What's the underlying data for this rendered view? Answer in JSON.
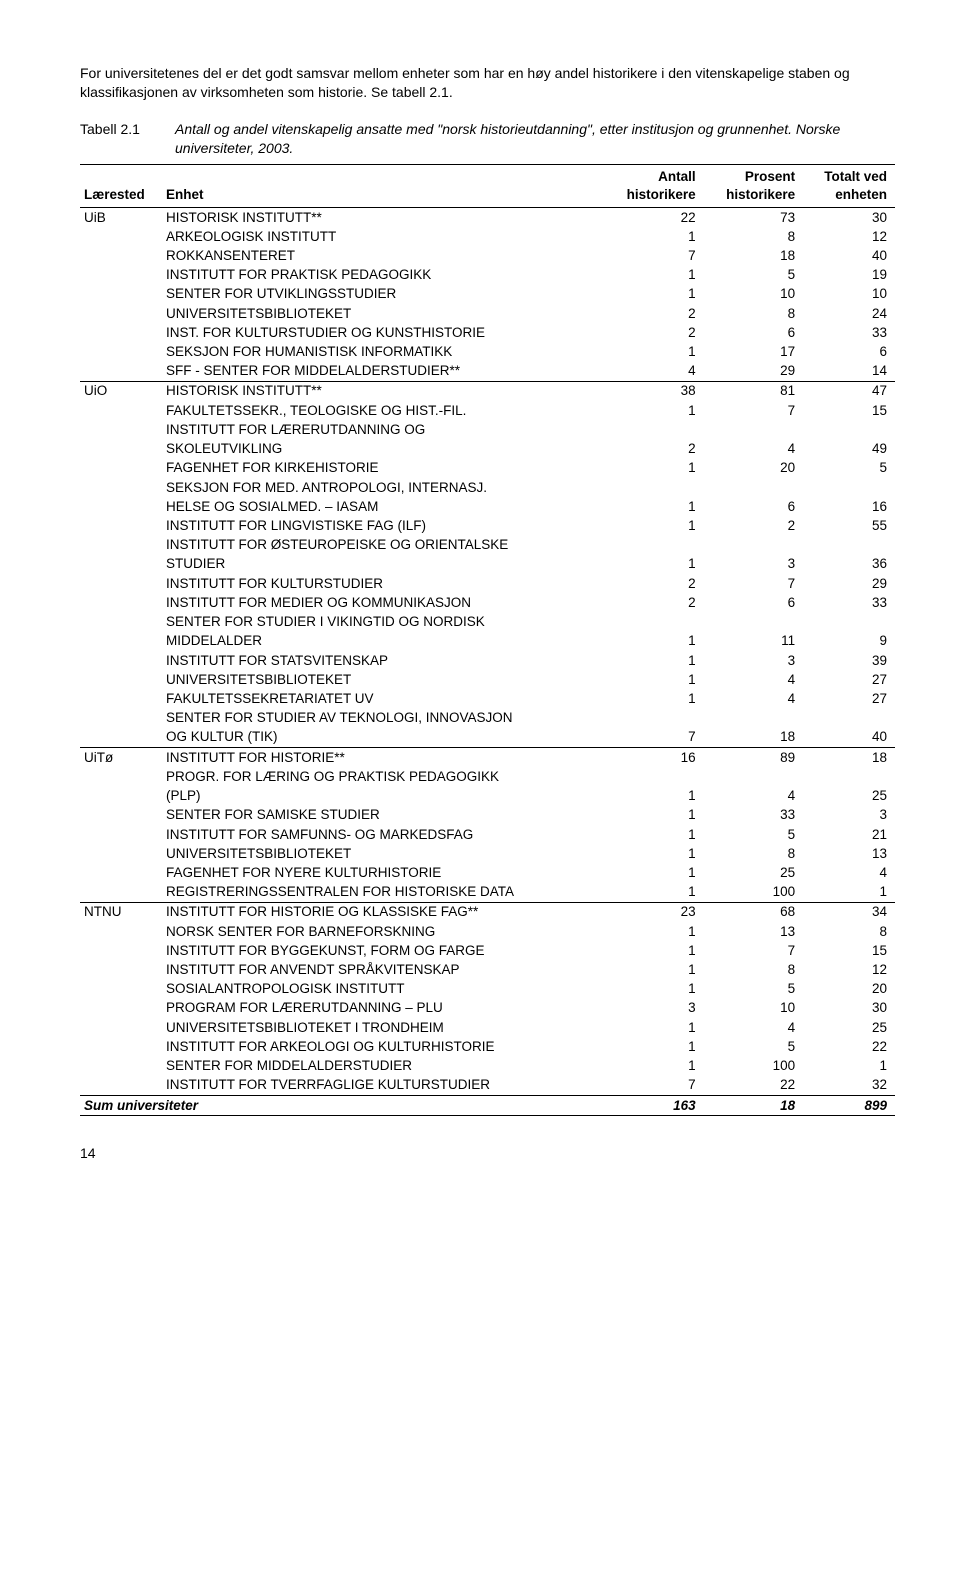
{
  "intro": "For universitetenes del er det godt samsvar mellom enheter som har en høy andel historikere i den vitenskapelige staben og klassifikasjonen av virksomheten som historie. Se tabell 2.1.",
  "table_label": "Tabell 2.1",
  "table_caption": "Antall og andel vitenskapelig ansatte med \"norsk historieutdanning\", etter institusjon og grunnenhet. Norske universiteter, 2003.",
  "headers": {
    "laerested": "Lærested",
    "enhet": "Enhet",
    "antall_l1": "Antall",
    "antall_l2": "historikere",
    "prosent_l1": "Prosent",
    "prosent_l2": "historikere",
    "totalt_l1": "Totalt ved",
    "totalt_l2": "enheten"
  },
  "groups": [
    {
      "lsted": "UiB",
      "rows": [
        {
          "enhet": "HISTORISK INSTITUTT**",
          "a": 22,
          "p": 73,
          "t": 30
        },
        {
          "enhet": "ARKEOLOGISK INSTITUTT",
          "a": 1,
          "p": 8,
          "t": 12
        },
        {
          "enhet": "ROKKANSENTERET",
          "a": 7,
          "p": 18,
          "t": 40
        },
        {
          "enhet": "INSTITUTT FOR PRAKTISK PEDAGOGIKK",
          "a": 1,
          "p": 5,
          "t": 19
        },
        {
          "enhet": "SENTER FOR UTVIKLINGSSTUDIER",
          "a": 1,
          "p": 10,
          "t": 10
        },
        {
          "enhet": "UNIVERSITETSBIBLIOTEKET",
          "a": 2,
          "p": 8,
          "t": 24
        },
        {
          "enhet": "INST. FOR KULTURSTUDIER OG KUNSTHISTORIE",
          "a": 2,
          "p": 6,
          "t": 33
        },
        {
          "enhet": "SEKSJON FOR HUMANISTISK INFORMATIKK",
          "a": 1,
          "p": 17,
          "t": 6
        },
        {
          "enhet": "SFF - SENTER FOR MIDDELALDERSTUDIER**",
          "a": 4,
          "p": 29,
          "t": 14
        }
      ]
    },
    {
      "lsted": "UiO",
      "rows": [
        {
          "enhet": "HISTORISK INSTITUTT**",
          "a": 38,
          "p": 81,
          "t": 47
        },
        {
          "enhet": "FAKULTETSSEKR., TEOLOGISKE OG HIST.-FIL.",
          "a": 1,
          "p": 7,
          "t": 15
        },
        {
          "enhet": "INSTITUTT FOR LÆRERUTDANNING OG",
          "enhet2": "SKOLEUTVIKLING",
          "a": 2,
          "p": 4,
          "t": 49
        },
        {
          "enhet": "FAGENHET FOR KIRKEHISTORIE",
          "a": 1,
          "p": 20,
          "t": 5
        },
        {
          "enhet": "SEKSJON FOR MED. ANTROPOLOGI, INTERNASJ.",
          "enhet2": "HELSE OG SOSIALMED. – IASAM",
          "a": 1,
          "p": 6,
          "t": 16
        },
        {
          "enhet": "INSTITUTT FOR LINGVISTISKE FAG (ILF)",
          "a": 1,
          "p": 2,
          "t": 55
        },
        {
          "enhet": "INSTITUTT FOR ØSTEUROPEISKE OG ORIENTALSKE",
          "enhet2": "STUDIER",
          "a": 1,
          "p": 3,
          "t": 36
        },
        {
          "enhet": "INSTITUTT FOR KULTURSTUDIER",
          "a": 2,
          "p": 7,
          "t": 29
        },
        {
          "enhet": "INSTITUTT FOR MEDIER OG KOMMUNIKASJON",
          "a": 2,
          "p": 6,
          "t": 33
        },
        {
          "enhet": "SENTER FOR STUDIER I VIKINGTID OG NORDISK",
          "enhet2": "MIDDELALDER",
          "a": 1,
          "p": 11,
          "t": 9
        },
        {
          "enhet": "INSTITUTT FOR STATSVITENSKAP",
          "a": 1,
          "p": 3,
          "t": 39
        },
        {
          "enhet": "UNIVERSITETSBIBLIOTEKET",
          "a": 1,
          "p": 4,
          "t": 27
        },
        {
          "enhet": "FAKULTETSSEKRETARIATET UV",
          "a": 1,
          "p": 4,
          "t": 27
        },
        {
          "enhet": "SENTER FOR STUDIER AV TEKNOLOGI, INNOVASJON",
          "enhet2": "OG KULTUR (TIK)",
          "a": 7,
          "p": 18,
          "t": 40
        }
      ]
    },
    {
      "lsted": "UiTø",
      "rows": [
        {
          "enhet": "INSTITUTT FOR HISTORIE**",
          "a": 16,
          "p": 89,
          "t": 18
        },
        {
          "enhet": "PROGR. FOR LÆRING OG PRAKTISK PEDAGOGIKK",
          "enhet2": "(PLP)",
          "a": 1,
          "p": 4,
          "t": 25
        },
        {
          "enhet": "SENTER FOR SAMISKE STUDIER",
          "a": 1,
          "p": 33,
          "t": 3
        },
        {
          "enhet": "INSTITUTT FOR SAMFUNNS- OG MARKEDSFAG",
          "a": 1,
          "p": 5,
          "t": 21
        },
        {
          "enhet": "UNIVERSITETSBIBLIOTEKET",
          "a": 1,
          "p": 8,
          "t": 13
        },
        {
          "enhet": "FAGENHET FOR NYERE KULTURHISTORIE",
          "a": 1,
          "p": 25,
          "t": 4
        },
        {
          "enhet": "REGISTRERINGSSENTRALEN FOR HISTORISKE DATA",
          "a": 1,
          "p": 100,
          "t": 1
        }
      ]
    },
    {
      "lsted": "NTNU",
      "rows": [
        {
          "enhet": "INSTITUTT FOR HISTORIE OG KLASSISKE FAG**",
          "a": 23,
          "p": 68,
          "t": 34
        },
        {
          "enhet": "NORSK SENTER FOR BARNEFORSKNING",
          "a": 1,
          "p": 13,
          "t": 8
        },
        {
          "enhet": "INSTITUTT FOR BYGGEKUNST, FORM OG FARGE",
          "a": 1,
          "p": 7,
          "t": 15
        },
        {
          "enhet": "INSTITUTT FOR ANVENDT SPRÅKVITENSKAP",
          "a": 1,
          "p": 8,
          "t": 12
        },
        {
          "enhet": "SOSIALANTROPOLOGISK INSTITUTT",
          "a": 1,
          "p": 5,
          "t": 20
        },
        {
          "enhet": "PROGRAM FOR LÆRERUTDANNING – PLU",
          "a": 3,
          "p": 10,
          "t": 30
        },
        {
          "enhet": "UNIVERSITETSBIBLIOTEKET I TRONDHEIM",
          "a": 1,
          "p": 4,
          "t": 25
        },
        {
          "enhet": "INSTITUTT FOR ARKEOLOGI OG KULTURHISTORIE",
          "a": 1,
          "p": 5,
          "t": 22
        },
        {
          "enhet": "SENTER FOR MIDDELALDERSTUDIER",
          "a": 1,
          "p": 100,
          "t": 1
        },
        {
          "enhet": "INSTITUTT FOR TVERRFAGLIGE KULTURSTUDIER",
          "a": 7,
          "p": 22,
          "t": 32
        }
      ]
    }
  ],
  "sum_row": {
    "label": "Sum universiteter",
    "a": 163,
    "p": 18,
    "t": 899
  },
  "page_number": "14"
}
